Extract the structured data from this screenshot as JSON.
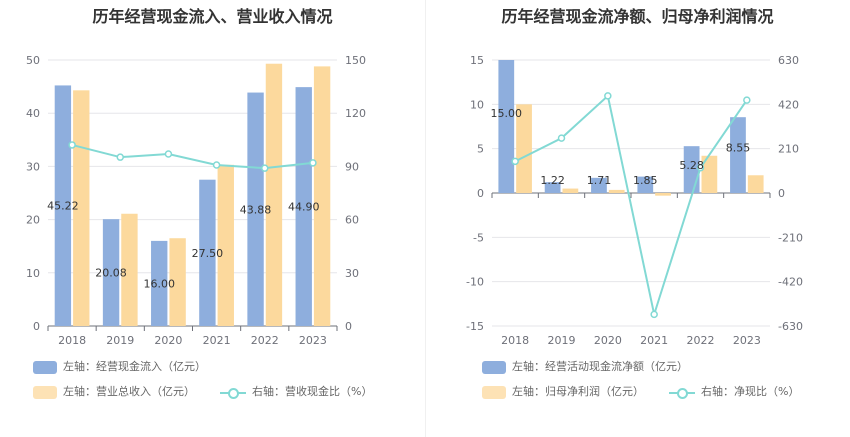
{
  "colors": {
    "bar1": "#8eaedd",
    "bar2": "#fcd99d",
    "line": "#82d9d4",
    "grid": "#e6e6ea",
    "axis": "#6e7079"
  },
  "chart_data": [
    {
      "type": "bar",
      "title": "历年经营现金流入、营业收入情况",
      "categories": [
        "2018",
        "2019",
        "2020",
        "2021",
        "2022",
        "2023"
      ],
      "left_axis": {
        "ylim": [
          0,
          50
        ],
        "ticks": [
          "0",
          "10",
          "20",
          "30",
          "40",
          "50"
        ]
      },
      "right_axis": {
        "ylim": [
          0,
          150
        ],
        "ticks": [
          "0",
          "30",
          "60",
          "90",
          "120",
          "150"
        ]
      },
      "series": [
        {
          "name": "左轴：经营现金流入（亿元）",
          "kind": "bar",
          "axis": "left",
          "values": [
            45.22,
            20.08,
            16.0,
            27.5,
            43.88,
            44.9
          ],
          "labels": [
            "45.22",
            "20.08",
            "16.00",
            "27.50",
            "43.88",
            "44.90"
          ]
        },
        {
          "name": "左轴：营业总收入（亿元）",
          "kind": "bar",
          "axis": "left",
          "values": [
            44.3,
            21.1,
            16.5,
            30.3,
            49.3,
            48.8
          ]
        },
        {
          "name": "右轴：营收现金比（%）",
          "kind": "line",
          "axis": "right",
          "values": [
            102.1,
            95.2,
            97.0,
            90.8,
            89.0,
            92.0
          ]
        }
      ]
    },
    {
      "type": "bar",
      "title": "历年经营现金流净额、归母净利润情况",
      "categories": [
        "2018",
        "2019",
        "2020",
        "2021",
        "2022",
        "2023"
      ],
      "left_axis": {
        "ylim": [
          -15,
          15
        ],
        "ticks": [
          "-15",
          "-10",
          "-5",
          "0",
          "5",
          "10",
          "15"
        ]
      },
      "right_axis": {
        "ylim": [
          -630,
          630
        ],
        "ticks": [
          "-630",
          "-420",
          "-210",
          "0",
          "210",
          "420",
          "630"
        ]
      },
      "series": [
        {
          "name": "左轴：经营活动现金流净额（亿元）",
          "kind": "bar",
          "axis": "left",
          "values": [
            15.0,
            1.22,
            1.71,
            1.85,
            5.28,
            8.55
          ],
          "labels": [
            "15.00",
            "1.22",
            "1.71",
            "1.85",
            "5.28",
            "8.55"
          ]
        },
        {
          "name": "左轴：归母净利润（亿元）",
          "kind": "bar",
          "axis": "left",
          "values": [
            10.0,
            0.5,
            0.35,
            -0.3,
            4.2,
            2.0
          ]
        },
        {
          "name": "右轴：净现比（%）",
          "kind": "line",
          "axis": "right",
          "values": [
            150,
            260,
            460,
            -575,
            120,
            440
          ]
        }
      ]
    }
  ]
}
